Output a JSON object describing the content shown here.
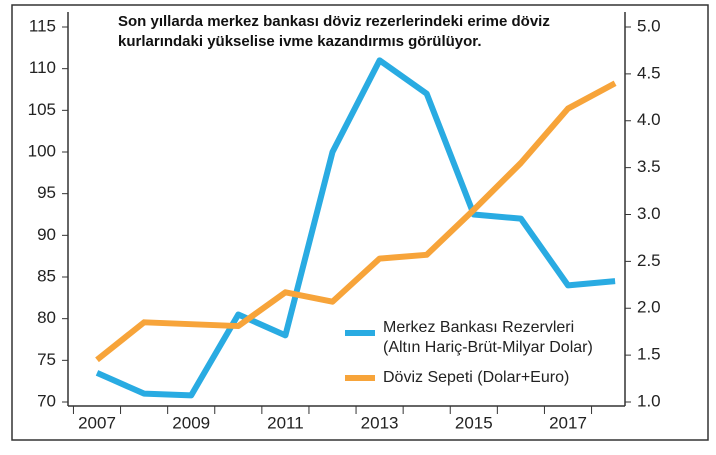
{
  "chart_data": {
    "type": "line",
    "title": "Son yıllarda merkez bankası döviz rezerlerindeki erime döviz kurlarındaki yükselise ivme kazandırmıs görülüyor.",
    "categories": [
      "2007",
      null,
      "2009",
      null,
      "2011",
      null,
      "2013",
      null,
      "2015",
      null,
      "2017",
      null
    ],
    "series": [
      {
        "name": "Merkez Bankası Rezervleri\n(Altın Hariç-Brüt-Milyar Dolar)",
        "color": "#29abe2",
        "values": [
          73.5,
          71,
          70.8,
          80.5,
          78,
          100,
          111,
          107,
          92.5,
          92,
          84,
          84.5
        ]
      },
      {
        "name": "Döviz Sepeti (Dolar+Euro)",
        "color": "#f7a43a",
        "axis": "y2",
        "values": [
          1.45,
          1.85,
          1.83,
          1.81,
          2.17,
          2.07,
          2.53,
          2.57,
          3.05,
          3.55,
          4.13,
          4.4
        ]
      }
    ],
    "ylim": [
      70,
      115
    ],
    "yticks": [
      70,
      75,
      80,
      85,
      90,
      95,
      100,
      105,
      110,
      115
    ],
    "y2lim": [
      1,
      5
    ],
    "y2ticks": [
      {
        "value": 1,
        "label": "1.0"
      },
      1.5,
      {
        "value": 2,
        "label": "2.0"
      },
      2.5,
      {
        "value": 3,
        "label": "3.0"
      },
      3.5,
      {
        "value": 4,
        "label": "4.0"
      },
      4.5,
      {
        "value": 5,
        "label": "5.0"
      }
    ]
  }
}
